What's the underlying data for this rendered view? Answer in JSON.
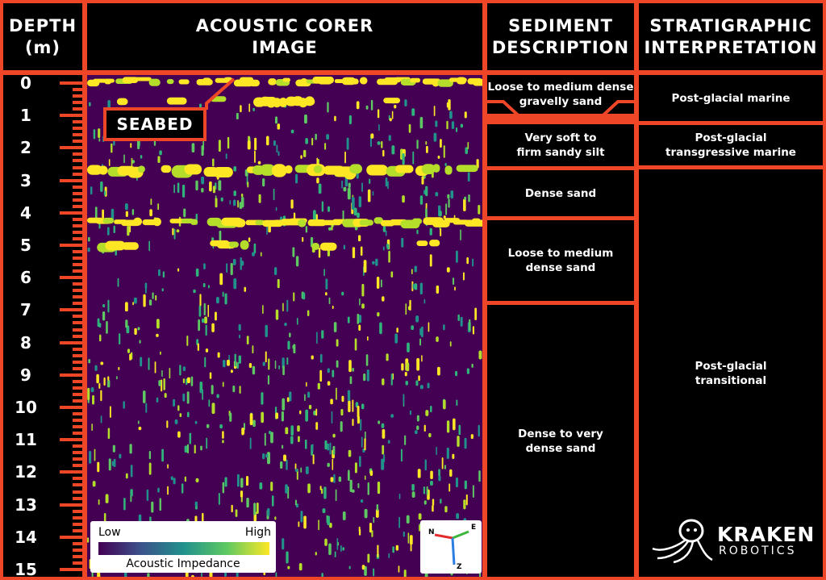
{
  "headers": {
    "depth": "DEPTH\n(m)",
    "corer": "ACOUSTIC CORER\nIMAGE",
    "sediment": "SEDIMENT\nDESCRIPTION",
    "strat": "STRATIGRAPHIC\nINTERPRETATION"
  },
  "depth_labels": [
    "0",
    "1",
    "2",
    "3",
    "4",
    "5",
    "6",
    "7",
    "8",
    "9",
    "10",
    "11",
    "12",
    "13",
    "14",
    "15"
  ],
  "seabed_label": "SEABED",
  "sediment_units": [
    {
      "text": "Loose to medium dense\ngravelly sand"
    },
    {
      "text": "Very soft to\nfirm sandy silt"
    },
    {
      "text": "Dense sand"
    },
    {
      "text": "Loose to medium\ndense sand"
    },
    {
      "text": "Dense to very\ndense sand"
    }
  ],
  "strat_units": [
    {
      "text": "Post-glacial marine"
    },
    {
      "text": "Post-glacial\ntransgressive marine"
    },
    {
      "text": "Post-glacial\ntransitional"
    }
  ],
  "legend": {
    "low": "Low",
    "high": "High",
    "caption": "Acoustic Impedance"
  },
  "axes_labels": {
    "n": "N",
    "e": "E",
    "z": "Z"
  },
  "logo": {
    "brand": "KRAKEN",
    "sub": "ROBOTICS"
  },
  "colors": {
    "frame": "#f04628",
    "background": "#000000",
    "low": "#440154",
    "high": "#fde725"
  }
}
